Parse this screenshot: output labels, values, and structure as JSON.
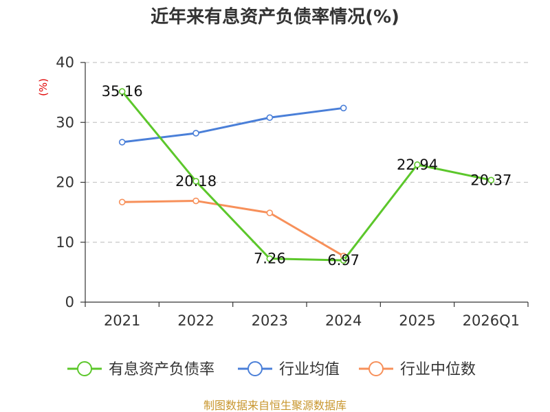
{
  "chart_data": {
    "type": "line",
    "title": "近年来有息资产负债率情况(%)",
    "ylabel": "(%)",
    "xlabel": "",
    "ylim": [
      0,
      40
    ],
    "yticks": [
      0,
      10,
      20,
      30,
      40
    ],
    "categories": [
      "2021",
      "2022",
      "2023",
      "2024",
      "2025",
      "2026Q1"
    ],
    "grid": true,
    "legend_position": "bottom",
    "series": [
      {
        "name": "有息资产负债率",
        "color": "#5cc72b",
        "values": [
          35.16,
          20.18,
          7.26,
          6.97,
          22.94,
          20.37
        ],
        "labels": [
          "35.16",
          "20.18",
          "7.26",
          "6.97",
          "22.94",
          "20.37"
        ],
        "show_labels": true
      },
      {
        "name": "行业均值",
        "color": "#4a7fd8",
        "values": [
          26.7,
          28.2,
          30.8,
          32.4,
          null,
          null
        ],
        "show_labels": false
      },
      {
        "name": "行业中位数",
        "color": "#f7905a",
        "values": [
          16.7,
          16.9,
          14.9,
          7.7,
          null,
          null
        ],
        "show_labels": false
      }
    ],
    "source": "制图数据来自恒生聚源数据库"
  }
}
